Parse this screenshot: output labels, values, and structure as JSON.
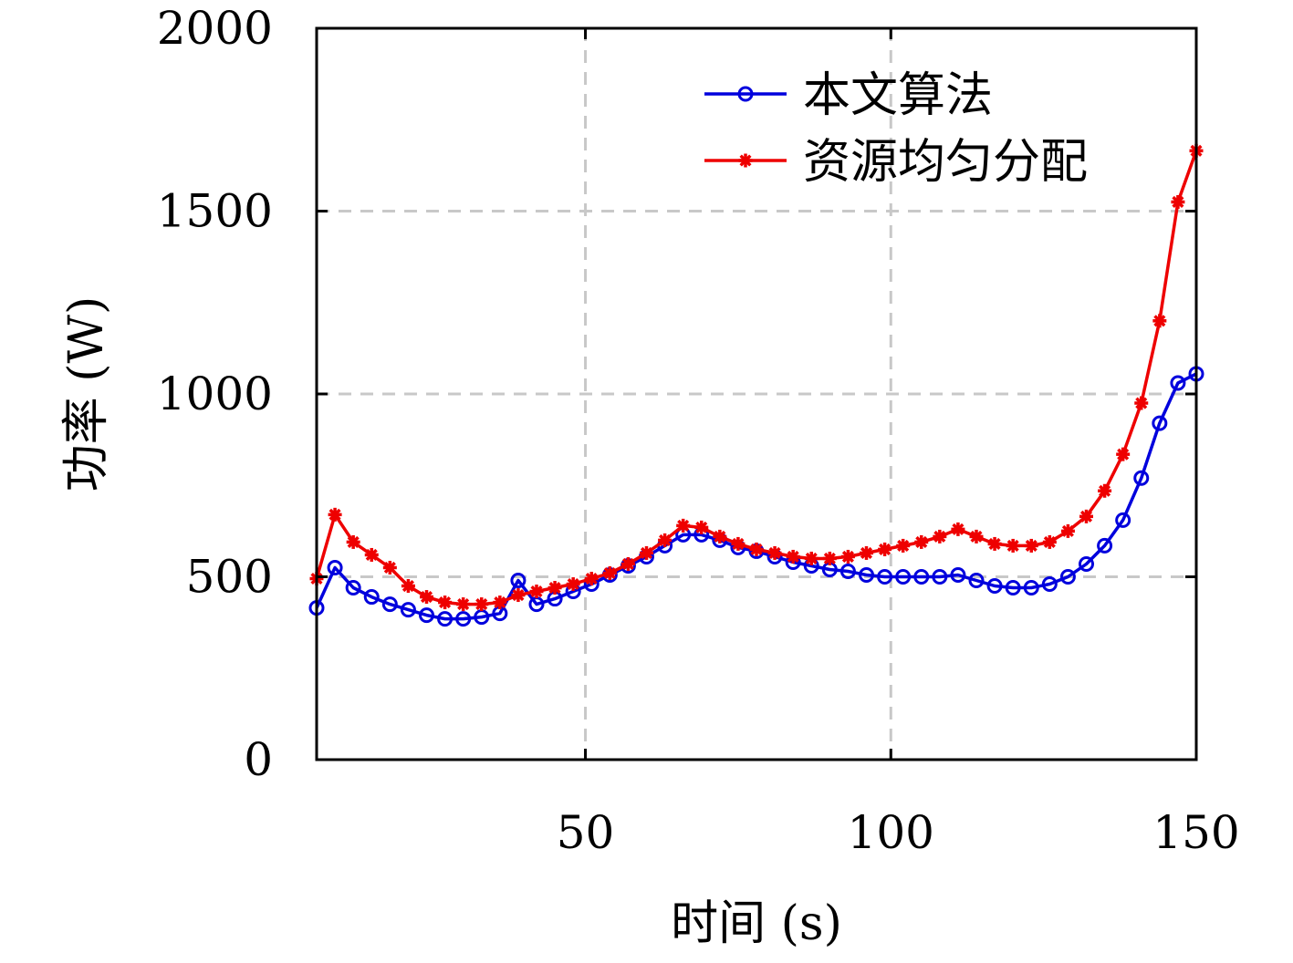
{
  "chart_data": {
    "type": "line",
    "title": "",
    "xlabel": "时间 (s)",
    "ylabel": "功率 (W)",
    "xlim": [
      6,
      150
    ],
    "ylim": [
      0,
      2000
    ],
    "xticks": [
      50,
      100,
      150
    ],
    "yticks": [
      0,
      500,
      1000,
      1500,
      2000
    ],
    "grid": true,
    "legend_position": "top-right",
    "series": [
      {
        "name": "本文算法",
        "color": "#0000dd",
        "marker": "circle",
        "x": [
          6,
          9,
          12,
          15,
          18,
          21,
          24,
          27,
          30,
          33,
          36,
          39,
          42,
          45,
          48,
          51,
          54,
          57,
          60,
          63,
          66,
          69,
          72,
          75,
          78,
          81,
          84,
          87,
          90,
          93,
          96,
          99,
          102,
          105,
          108,
          111,
          114,
          117,
          120,
          123,
          126,
          129,
          132,
          135,
          138,
          141,
          144,
          147,
          150
        ],
        "y": [
          415,
          525,
          470,
          445,
          425,
          410,
          395,
          385,
          385,
          390,
          400,
          490,
          425,
          440,
          460,
          480,
          505,
          530,
          555,
          585,
          615,
          615,
          600,
          580,
          570,
          555,
          540,
          530,
          520,
          515,
          505,
          500,
          500,
          500,
          500,
          505,
          490,
          475,
          470,
          470,
          480,
          500,
          535,
          585,
          655,
          770,
          920,
          1030,
          1055
        ]
      },
      {
        "name": "资源均匀分配",
        "color": "#ee0000",
        "marker": "asterisk",
        "x": [
          6,
          9,
          12,
          15,
          18,
          21,
          24,
          27,
          30,
          33,
          36,
          39,
          42,
          45,
          48,
          51,
          54,
          57,
          60,
          63,
          66,
          69,
          72,
          75,
          78,
          81,
          84,
          87,
          90,
          93,
          96,
          99,
          102,
          105,
          108,
          111,
          114,
          117,
          120,
          123,
          126,
          129,
          132,
          135,
          138,
          141,
          144,
          147,
          150
        ],
        "y": [
          495,
          670,
          595,
          560,
          525,
          475,
          445,
          430,
          425,
          425,
          430,
          450,
          460,
          470,
          480,
          495,
          510,
          535,
          565,
          600,
          640,
          635,
          610,
          590,
          575,
          565,
          555,
          550,
          550,
          555,
          565,
          575,
          585,
          595,
          610,
          630,
          610,
          590,
          585,
          585,
          595,
          625,
          665,
          735,
          835,
          975,
          1200,
          1525,
          1665
        ]
      }
    ]
  }
}
